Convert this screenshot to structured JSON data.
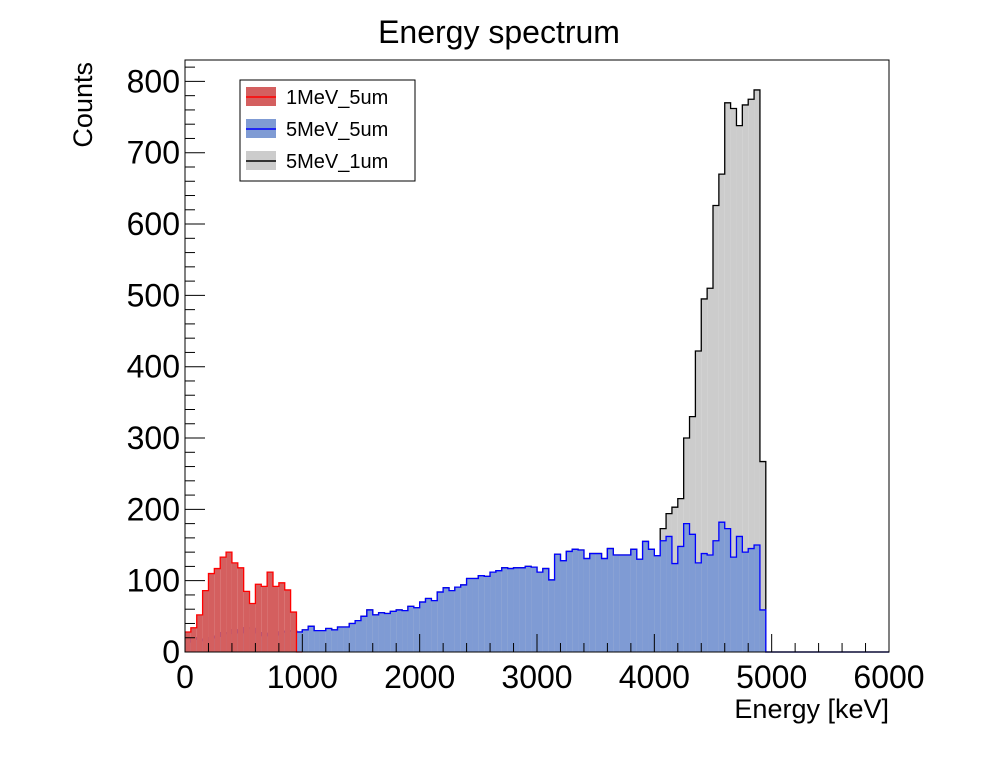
{
  "chart_data": {
    "type": "histogram",
    "title": "Energy spectrum",
    "xlabel": "Energy [keV]",
    "ylabel": "Counts",
    "xlim": [
      0,
      6000
    ],
    "ylim": [
      0,
      830
    ],
    "bin_width": 50,
    "x_ticks": [
      0,
      1000,
      2000,
      3000,
      4000,
      5000,
      6000
    ],
    "y_ticks": [
      0,
      100,
      200,
      300,
      400,
      500,
      600,
      700,
      800
    ],
    "grid": false,
    "legend_position": "top-left",
    "series": [
      {
        "name": "5MeV_1um",
        "fill": "#cccccc",
        "stroke": "#000000",
        "start": 0,
        "values": [
          14,
          20,
          18,
          16,
          20,
          22,
          27,
          26,
          31,
          27,
          34,
          33,
          27,
          23,
          26,
          24,
          28,
          29,
          30,
          28,
          31,
          36,
          30,
          30,
          33,
          31,
          35,
          35,
          40,
          44,
          50,
          59,
          52,
          55,
          54,
          57,
          59,
          58,
          64,
          62,
          70,
          75,
          72,
          84,
          90,
          86,
          91,
          94,
          103,
          103,
          107,
          106,
          112,
          114,
          118,
          117,
          118,
          118,
          120,
          119,
          112,
          117,
          101,
          137,
          128,
          141,
          144,
          143,
          131,
          138,
          138,
          131,
          145,
          136,
          136,
          136,
          144,
          130,
          155,
          144,
          135,
          173,
          194,
          203,
          215,
          300,
          330,
          422,
          495,
          510,
          626,
          670,
          770,
          762,
          738,
          767,
          775,
          788,
          267,
          0,
          0,
          0,
          0,
          0,
          0,
          0,
          0,
          0,
          0,
          0,
          0,
          0,
          0,
          0,
          0,
          0,
          0,
          0,
          0,
          0
        ]
      },
      {
        "name": "5MeV_5um",
        "fill": "#7f9bd4",
        "stroke": "#0000ff",
        "start": 0,
        "values": [
          14,
          20,
          18,
          16,
          20,
          22,
          27,
          26,
          31,
          27,
          34,
          33,
          27,
          23,
          26,
          24,
          28,
          29,
          30,
          28,
          31,
          36,
          30,
          30,
          33,
          31,
          35,
          35,
          40,
          44,
          50,
          59,
          52,
          55,
          54,
          57,
          59,
          58,
          64,
          62,
          70,
          75,
          72,
          84,
          90,
          86,
          91,
          94,
          103,
          103,
          107,
          106,
          112,
          114,
          118,
          117,
          118,
          118,
          120,
          119,
          112,
          117,
          101,
          137,
          128,
          141,
          144,
          143,
          131,
          138,
          138,
          131,
          145,
          136,
          136,
          136,
          144,
          130,
          155,
          144,
          135,
          156,
          162,
          124,
          148,
          180,
          165,
          125,
          138,
          136,
          156,
          182,
          173,
          133,
          162,
          140,
          145,
          150,
          59,
          0,
          0,
          0,
          0,
          0,
          0,
          0,
          0,
          0,
          0,
          0,
          0,
          0,
          0,
          0,
          0,
          0,
          0,
          0,
          0,
          0
        ]
      },
      {
        "name": "1MeV_5um",
        "fill": "#d45f5f",
        "stroke": "#ff0000",
        "start": 0,
        "values": [
          28,
          34,
          52,
          86,
          110,
          117,
          133,
          140,
          125,
          118,
          85,
          68,
          95,
          92,
          112,
          92,
          97,
          87,
          56,
          0
        ]
      }
    ]
  }
}
